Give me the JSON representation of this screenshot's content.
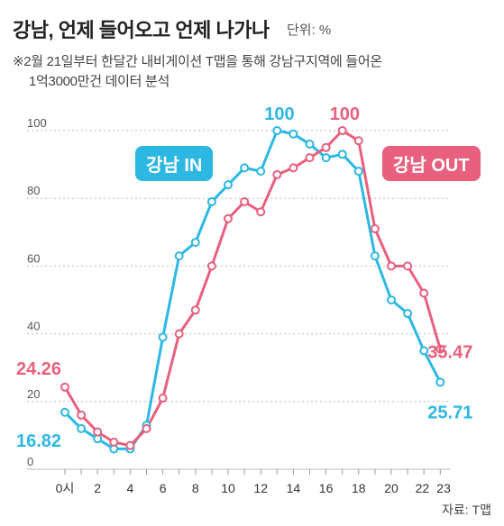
{
  "title": "강남, 언제 들어오고 언제 나가나",
  "unit": "단위: %",
  "note_line1": "※2월 21일부터 한달간 내비게이션 T맵을 통해 강남구지역에 들어온",
  "note_line2": "1억3000만건 데이터 분석",
  "source": "자료: T맵",
  "colors": {
    "in": "#2cb8e2",
    "out": "#e8607e",
    "grid": "#bbbbbb"
  },
  "chart_data": {
    "type": "line",
    "title": "강남, 언제 들어오고 언제 나가나",
    "xlabel": "",
    "ylabel": "",
    "x": [
      0,
      1,
      2,
      3,
      4,
      5,
      6,
      7,
      8,
      9,
      10,
      11,
      12,
      13,
      14,
      15,
      16,
      17,
      18,
      19,
      20,
      21,
      22,
      23
    ],
    "x_tick_labels": [
      "0시",
      "2",
      "4",
      "6",
      "8",
      "10",
      "12",
      "14",
      "16",
      "18",
      "20",
      "22",
      "23"
    ],
    "x_tick_values": [
      0,
      2,
      4,
      6,
      8,
      10,
      12,
      14,
      16,
      18,
      20,
      22,
      23
    ],
    "y_ticks": [
      0,
      20,
      40,
      60,
      80,
      100
    ],
    "ylim": [
      0,
      100
    ],
    "grid": true,
    "series": [
      {
        "name": "강남 IN",
        "key": "in",
        "values": [
          16.82,
          12,
          9,
          6,
          6,
          13,
          39,
          63,
          67,
          79,
          84,
          89,
          88,
          100,
          99,
          96,
          92,
          93,
          88,
          63,
          50,
          46,
          35,
          25.71
        ]
      },
      {
        "name": "강남 OUT",
        "key": "out",
        "values": [
          24.26,
          16,
          11,
          8,
          7,
          12,
          21,
          40,
          47,
          60,
          74,
          79,
          76,
          87,
          89,
          92,
          95,
          100,
          97,
          71,
          60,
          60,
          52,
          35.47
        ]
      }
    ],
    "annotations": [
      {
        "series": "in",
        "index": 0,
        "text": "16.82"
      },
      {
        "series": "out",
        "index": 0,
        "text": "24.26"
      },
      {
        "series": "in",
        "index": 13,
        "text": "100"
      },
      {
        "series": "out",
        "index": 17,
        "text": "100"
      },
      {
        "series": "in",
        "index": 23,
        "text": "25.71"
      },
      {
        "series": "out",
        "index": 23,
        "text": "35.47"
      }
    ]
  }
}
